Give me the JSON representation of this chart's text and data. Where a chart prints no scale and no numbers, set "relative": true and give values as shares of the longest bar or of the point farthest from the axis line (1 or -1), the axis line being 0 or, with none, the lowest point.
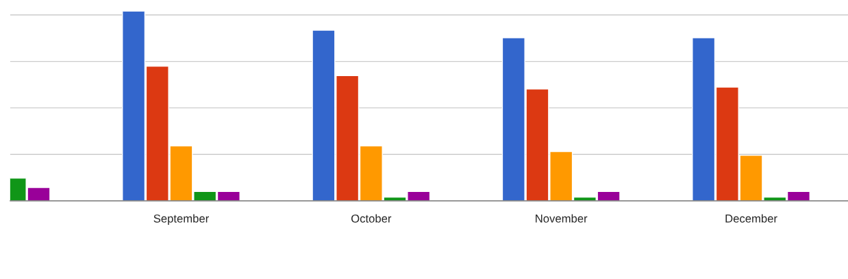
{
  "chart_data": {
    "type": "bar",
    "relative": true,
    "grid": "y",
    "legend": false,
    "categories": [
      null,
      "September",
      "October",
      "November",
      "December"
    ],
    "series": [
      {
        "color": "#3366cc",
        "values": [
          null,
          1.0,
          0.9,
          0.86,
          0.86
        ]
      },
      {
        "color": "#dc3912",
        "values": [
          null,
          0.71,
          0.66,
          0.59,
          0.6
        ]
      },
      {
        "color": "#ff9900",
        "values": [
          null,
          0.29,
          0.29,
          0.26,
          0.24
        ]
      },
      {
        "color": "#109618",
        "values": [
          0.12,
          0.05,
          0.02,
          0.02,
          0.02
        ]
      },
      {
        "color": "#990099",
        "values": [
          0.07,
          0.05,
          0.05,
          0.05,
          0.05
        ]
      }
    ]
  }
}
